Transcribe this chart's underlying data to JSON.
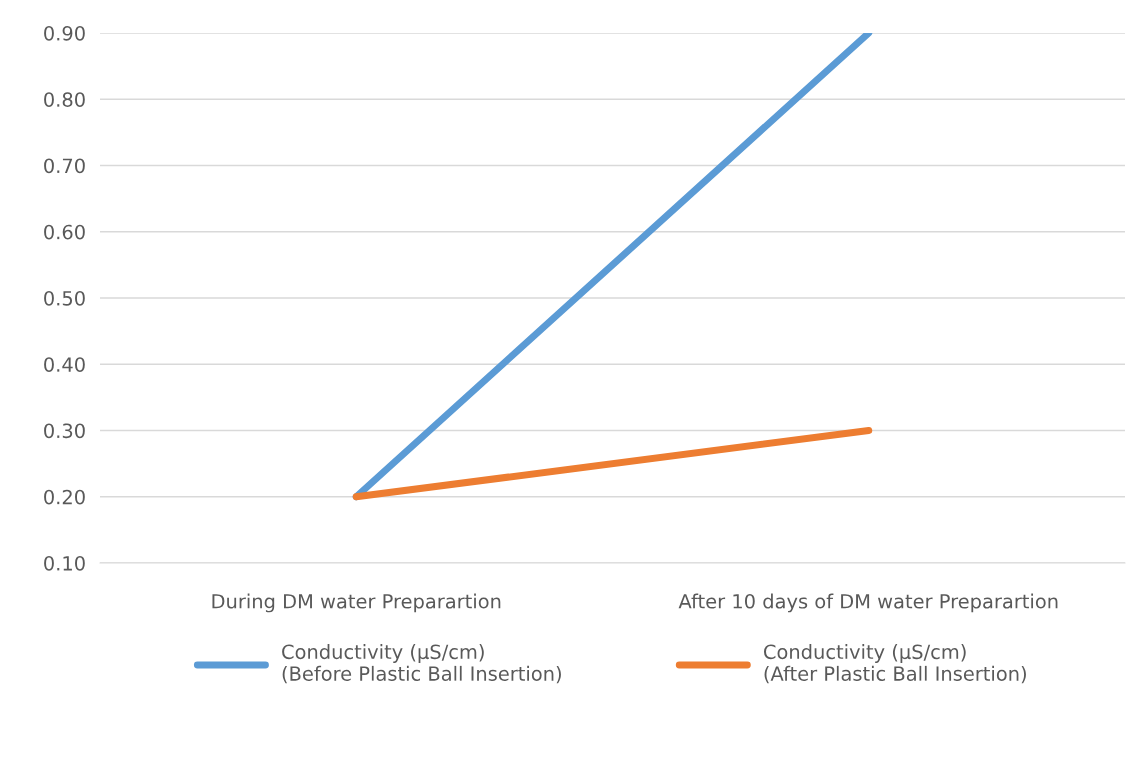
{
  "chart_data": {
    "type": "line",
    "categories": [
      "During DM water Preparartion",
      "After 10 days of DM water Preparartion"
    ],
    "series": [
      {
        "name": "Conductivity (µS/cm)\n(Before Plastic Ball Insertion)",
        "color": "#5b9bd5",
        "values": [
          0.2,
          0.9
        ]
      },
      {
        "name": "Conductivity (µS/cm)\n(After Plastic Ball Insertion)",
        "color": "#ed7d31",
        "values": [
          0.2,
          0.3
        ]
      }
    ],
    "ylim": [
      0.1,
      0.9
    ],
    "yticks": [
      {
        "value": 0.1,
        "label": "0.10"
      },
      {
        "value": 0.2,
        "label": "0.20"
      },
      {
        "value": 0.3,
        "label": "0.30"
      },
      {
        "value": 0.4,
        "label": "0.40"
      },
      {
        "value": 0.5,
        "label": "0.50"
      },
      {
        "value": 0.6,
        "label": "0.60"
      },
      {
        "value": 0.7,
        "label": "0.70"
      },
      {
        "value": 0.8,
        "label": "0.80"
      },
      {
        "value": 0.9,
        "label": "0.90"
      }
    ],
    "grid": "y",
    "legend": "bottom",
    "marker": "none",
    "line_style": "solid"
  }
}
